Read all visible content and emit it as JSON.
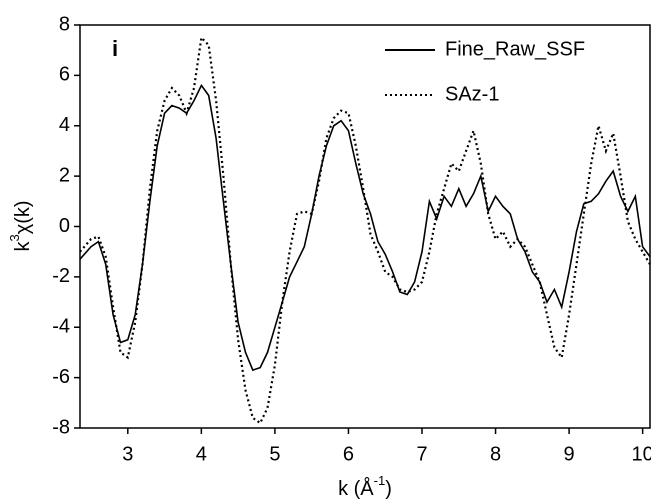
{
  "chart_data": {
    "type": "line",
    "annotation": "i",
    "xlabel": [
      "k (Å",
      "-1",
      ")"
    ],
    "ylabel": [
      "k",
      "3",
      "χ(k)"
    ],
    "x": [
      2.35,
      2.5,
      2.6,
      2.7,
      2.8,
      2.9,
      3.0,
      3.1,
      3.2,
      3.3,
      3.4,
      3.5,
      3.6,
      3.7,
      3.8,
      3.9,
      4.0,
      4.1,
      4.2,
      4.3,
      4.4,
      4.5,
      4.6,
      4.7,
      4.8,
      4.9,
      5.0,
      5.1,
      5.2,
      5.3,
      5.4,
      5.5,
      5.6,
      5.7,
      5.8,
      5.9,
      6.0,
      6.1,
      6.2,
      6.3,
      6.4,
      6.5,
      6.6,
      6.7,
      6.8,
      6.9,
      7.0,
      7.1,
      7.2,
      7.3,
      7.4,
      7.5,
      7.6,
      7.7,
      7.8,
      7.9,
      8.0,
      8.1,
      8.2,
      8.3,
      8.4,
      8.5,
      8.6,
      8.7,
      8.8,
      8.9,
      9.0,
      9.1,
      9.2,
      9.3,
      9.4,
      9.5,
      9.6,
      9.7,
      9.8,
      9.9,
      10.0,
      10.1
    ],
    "series": [
      {
        "name": "Fine_Raw_SSF",
        "color": "#000000",
        "dash": "solid",
        "values": [
          -1.3,
          -0.8,
          -0.6,
          -1.5,
          -3.5,
          -4.6,
          -4.5,
          -3.5,
          -1.5,
          1.0,
          3.2,
          4.5,
          4.8,
          4.7,
          4.5,
          5.0,
          5.6,
          5.2,
          3.5,
          1.0,
          -1.5,
          -3.8,
          -5.0,
          -5.7,
          -5.6,
          -5.0,
          -4.0,
          -3.0,
          -2.0,
          -1.4,
          -0.8,
          0.5,
          2.0,
          3.2,
          4.0,
          4.2,
          3.8,
          2.5,
          1.3,
          0.5,
          -0.6,
          -1.1,
          -1.8,
          -2.6,
          -2.7,
          -2.2,
          -1.0,
          1.0,
          0.3,
          1.2,
          0.8,
          1.5,
          0.8,
          1.3,
          2.0,
          0.6,
          1.2,
          0.8,
          0.5,
          -0.5,
          -1.0,
          -1.8,
          -2.2,
          -3.0,
          -2.5,
          -3.2,
          -1.8,
          -0.2,
          0.9,
          1.0,
          1.3,
          1.8,
          2.2,
          1.2,
          0.6,
          1.2,
          -0.8,
          -1.2
        ]
      },
      {
        "name": "SAz-1",
        "color": "#000000",
        "dash": "dotted",
        "values": [
          -1.0,
          -0.5,
          -0.4,
          -1.2,
          -3.2,
          -5.0,
          -5.2,
          -3.8,
          -1.5,
          1.5,
          3.8,
          5.0,
          5.5,
          5.2,
          4.5,
          5.5,
          7.5,
          7.2,
          5.0,
          2.0,
          -1.5,
          -4.5,
          -6.5,
          -7.6,
          -7.8,
          -7.2,
          -5.5,
          -3.0,
          -1.0,
          0.5,
          0.6,
          0.5,
          1.8,
          3.5,
          4.3,
          4.6,
          4.5,
          3.2,
          1.5,
          -0.3,
          -1.0,
          -1.8,
          -2.0,
          -2.5,
          -2.6,
          -2.5,
          -2.2,
          -1.0,
          0.5,
          1.5,
          2.5,
          2.2,
          3.0,
          3.8,
          2.5,
          0.5,
          -0.5,
          -0.2,
          -0.8,
          -0.5,
          -0.8,
          -1.5,
          -2.2,
          -3.5,
          -4.8,
          -5.2,
          -3.5,
          -1.5,
          0.5,
          2.5,
          4.0,
          3.0,
          3.7,
          2.0,
          0.2,
          -0.5,
          -1.0,
          -1.5
        ]
      }
    ],
    "xlim": [
      2.35,
      10.1
    ],
    "xticks": [
      3,
      4,
      5,
      6,
      7,
      8,
      9,
      10
    ],
    "ylim": [
      -8,
      8
    ],
    "yticks": [
      -8,
      -6,
      -4,
      -2,
      0,
      2,
      4,
      6,
      8
    ],
    "legend": "upper right"
  }
}
